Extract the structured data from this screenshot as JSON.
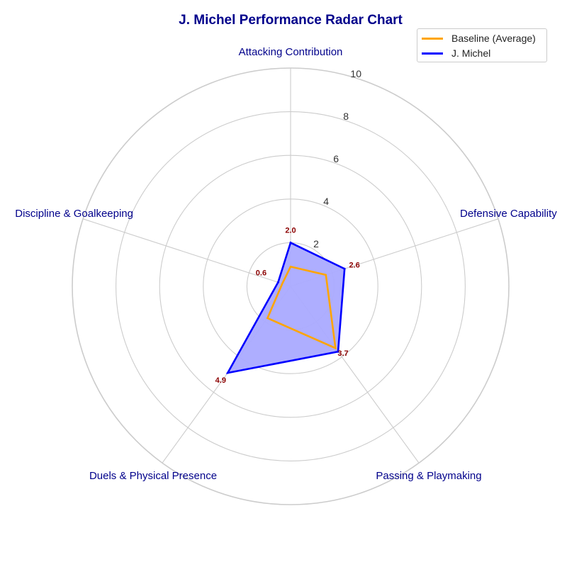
{
  "chart_data": {
    "type": "radar",
    "title": "J. Michel Performance Radar Chart",
    "axes": [
      "Attacking Contribution",
      "Defensive Capability",
      "Passing & Playmaking",
      "Duels & Physical Presence",
      "Discipline & Goalkeeping"
    ],
    "rlim": [
      0,
      10
    ],
    "r_ticks": [
      2,
      4,
      6,
      8,
      10
    ],
    "grid": true,
    "legend_position": "top-right",
    "series": [
      {
        "name": "Baseline (Average)",
        "values": [
          0.9,
          1.7,
          3.5,
          1.8,
          0.4
        ],
        "color": "#ffa500",
        "fill": false
      },
      {
        "name": "J. Michel",
        "values": [
          2.0,
          2.6,
          3.7,
          4.9,
          0.6
        ],
        "color": "#0000ff",
        "fill": true,
        "fill_color": "#aaaaff"
      }
    ],
    "data_labels": [
      "2.0",
      "2.6",
      "3.7",
      "4.9",
      "0.6"
    ]
  },
  "colors": {
    "title": "#00008b",
    "axis_label": "#00008b",
    "data_label": "#8b0000",
    "grid": "#cccccc"
  }
}
